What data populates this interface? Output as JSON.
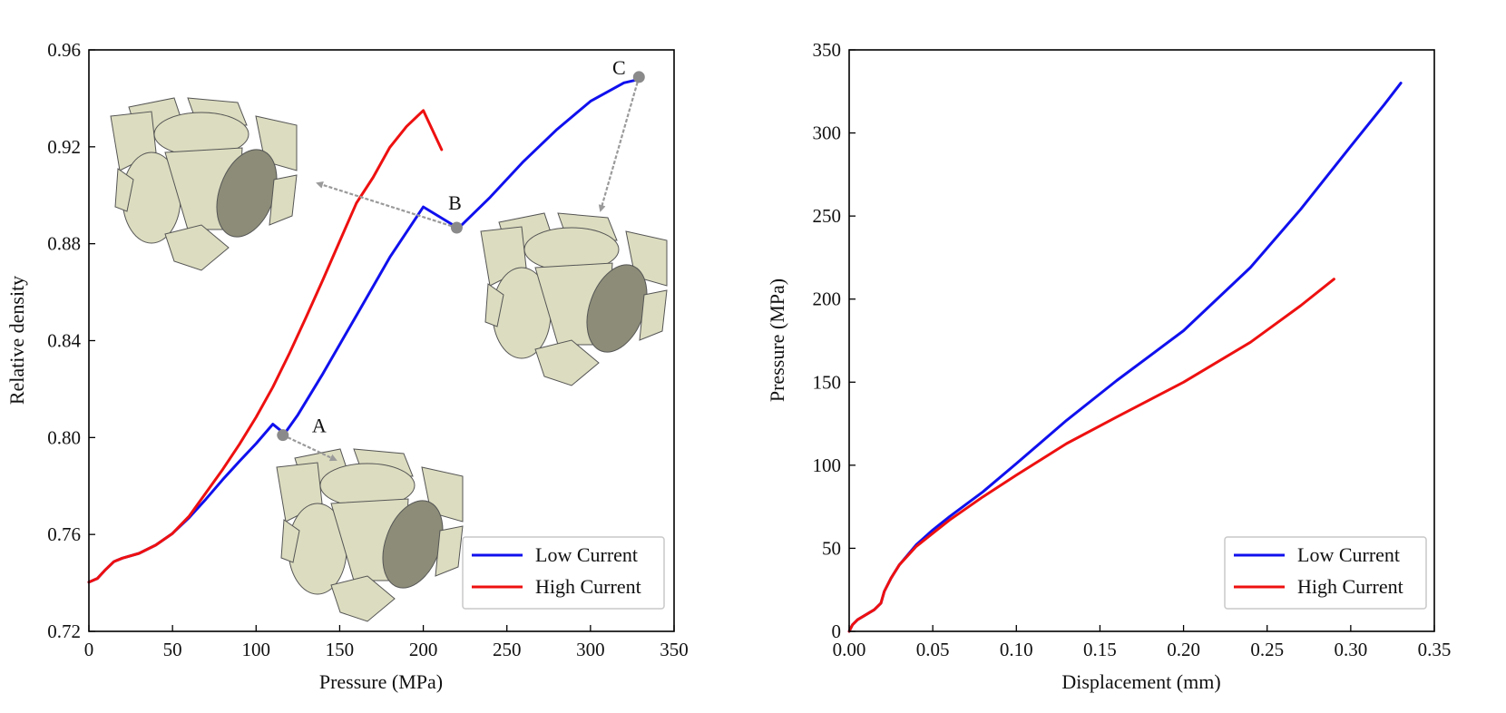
{
  "colors": {
    "low": "#1010ee",
    "high": "#ee1010",
    "marker": "#8a8a8a",
    "arrow": "#9a9a9a",
    "cube": "#dcdcc0",
    "cube_dark": "#8c8c78"
  },
  "chart_data": [
    {
      "id": "left",
      "type": "line",
      "xlabel": "Pressure (MPa)",
      "ylabel": "Relative density",
      "xlim": [
        0,
        350
      ],
      "ylim": [
        0.72,
        0.96
      ],
      "xticks": [
        "0",
        "50",
        "100",
        "150",
        "200",
        "250",
        "300",
        "350"
      ],
      "yticks": [
        "0.72",
        "0.76",
        "0.80",
        "0.84",
        "0.88",
        "0.92",
        "0.96"
      ],
      "legend": {
        "position": "bottom-right",
        "entries": [
          "Low Current",
          "High Current"
        ]
      },
      "series": [
        {
          "name": "Low Current",
          "color": "#1010ee",
          "x": [
            0,
            5,
            10,
            15,
            20,
            30,
            40,
            50,
            60,
            70,
            80,
            90,
            100,
            110,
            117,
            125,
            140,
            160,
            180,
            200,
            221,
            240,
            260,
            280,
            300,
            320,
            330
          ],
          "y": [
            0.7403,
            0.7418,
            0.7455,
            0.7488,
            0.7502,
            0.7522,
            0.7556,
            0.7604,
            0.767,
            0.7746,
            0.7826,
            0.7902,
            0.7975,
            0.8055,
            0.8016,
            0.8094,
            0.8264,
            0.8504,
            0.8744,
            0.8952,
            0.8864,
            0.8992,
            0.914,
            0.9272,
            0.9388,
            0.9464,
            0.948
          ]
        },
        {
          "name": "High Current",
          "color": "#ee1010",
          "x": [
            0,
            5,
            10,
            15,
            20,
            30,
            40,
            50,
            60,
            70,
            80,
            90,
            100,
            110,
            120,
            130,
            140,
            150,
            160,
            170,
            180,
            190,
            200,
            211
          ],
          "y": [
            0.7403,
            0.7418,
            0.7455,
            0.7488,
            0.7502,
            0.7522,
            0.7556,
            0.7604,
            0.7676,
            0.7772,
            0.7868,
            0.7972,
            0.8084,
            0.8208,
            0.8348,
            0.8498,
            0.8652,
            0.881,
            0.8968,
            0.9074,
            0.9198,
            0.9284,
            0.935,
            0.9188
          ]
        }
      ],
      "annotations": [
        {
          "label": "A",
          "x": 116,
          "y": 0.801
        },
        {
          "label": "B",
          "x": 220,
          "y": 0.8866
        },
        {
          "label": "C",
          "x": 329,
          "y": 0.9488
        }
      ]
    },
    {
      "id": "right",
      "type": "line",
      "xlabel": "Displacement (mm)",
      "ylabel": "Pressure (MPa)",
      "xlim": [
        0,
        0.35
      ],
      "ylim": [
        0,
        350
      ],
      "xticks": [
        "0.00",
        "0.05",
        "0.10",
        "0.15",
        "0.20",
        "0.25",
        "0.30",
        "0.35"
      ],
      "yticks": [
        "0",
        "50",
        "100",
        "150",
        "200",
        "250",
        "300",
        "350"
      ],
      "legend": {
        "position": "bottom-right",
        "entries": [
          "Low Current",
          "High Current"
        ]
      },
      "series": [
        {
          "name": "Low Current",
          "color": "#1010ee",
          "x": [
            0,
            0.002,
            0.005,
            0.01,
            0.015,
            0.019,
            0.021,
            0.025,
            0.03,
            0.04,
            0.05,
            0.06,
            0.08,
            0.1,
            0.13,
            0.16,
            0.2,
            0.24,
            0.27,
            0.3,
            0.32,
            0.33
          ],
          "y": [
            0,
            4,
            7,
            10,
            13,
            17,
            24,
            32,
            40,
            52,
            61,
            69,
            84,
            101,
            127,
            151,
            181,
            219,
            254,
            292,
            317,
            330
          ]
        },
        {
          "name": "High Current",
          "color": "#ee1010",
          "x": [
            0,
            0.002,
            0.005,
            0.01,
            0.015,
            0.019,
            0.021,
            0.025,
            0.03,
            0.04,
            0.05,
            0.06,
            0.08,
            0.1,
            0.13,
            0.16,
            0.2,
            0.24,
            0.27,
            0.29
          ],
          "y": [
            0,
            4,
            7,
            10,
            13,
            17,
            24,
            32,
            40,
            51,
            59,
            67,
            81,
            94,
            113,
            129,
            150,
            174,
            196,
            212
          ]
        }
      ]
    }
  ]
}
